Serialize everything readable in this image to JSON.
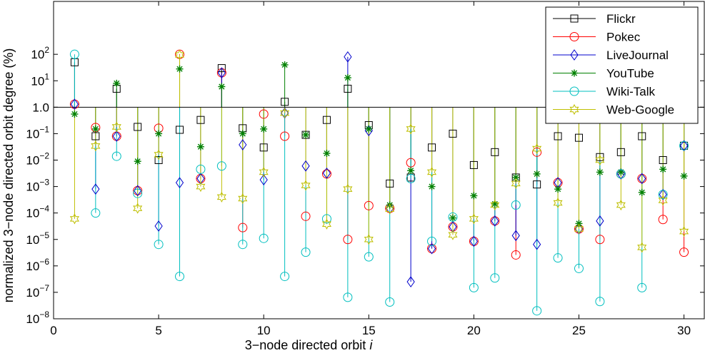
{
  "chart_data": {
    "type": "stem",
    "xlabel": "3−node directed orbit ",
    "xlabel_italic": "i",
    "ylabel": "normalized 3−node directed orbit degree (%)",
    "xlim": [
      0,
      31
    ],
    "ylim_exponent": [
      -8,
      4
    ],
    "y_scale": "log",
    "baseline": 1,
    "legend_position": "top-right",
    "x_ticks": [
      "0",
      "5",
      "10",
      "15",
      "20",
      "25",
      "30"
    ],
    "x_tick_values": [
      0,
      5,
      10,
      15,
      20,
      25,
      30
    ],
    "y_ticks": [
      {
        "exp": 2,
        "label": "10",
        "sup": "2"
      },
      {
        "exp": 1,
        "label": "10",
        "sup": "1"
      },
      {
        "exp": 0,
        "label": "1.0",
        "sup": ""
      },
      {
        "exp": -1,
        "label": "10",
        "sup": "−1"
      },
      {
        "exp": -2,
        "label": "10",
        "sup": "−2"
      },
      {
        "exp": -3,
        "label": "10",
        "sup": "−3"
      },
      {
        "exp": -4,
        "label": "10",
        "sup": "−4"
      },
      {
        "exp": -5,
        "label": "10",
        "sup": "−5"
      },
      {
        "exp": -6,
        "label": "10",
        "sup": "−6"
      },
      {
        "exp": -7,
        "label": "10",
        "sup": "−7"
      },
      {
        "exp": -8,
        "label": "10",
        "sup": "−8"
      }
    ],
    "x": [
      1,
      2,
      3,
      4,
      5,
      6,
      7,
      8,
      9,
      10,
      11,
      12,
      13,
      14,
      15,
      16,
      17,
      18,
      19,
      20,
      21,
      22,
      23,
      24,
      25,
      26,
      27,
      28,
      29,
      30
    ],
    "series": [
      {
        "name": "Flickr",
        "color": "#000000",
        "marker": "square",
        "values": [
          50,
          0.08,
          5,
          0.18,
          0.01,
          0.14,
          0.33,
          30,
          0.16,
          0.03,
          1.6,
          0.09,
          0.33,
          5,
          0.21,
          0.0013,
          0.0022,
          0.03,
          0.1,
          0.0065,
          0.02,
          0.0022,
          0.0012,
          0.08,
          0.07,
          0.013,
          0.02,
          0.08,
          0.01,
          0.035
        ]
      },
      {
        "name": "Pokec",
        "color": "#ff0000",
        "marker": "circle",
        "values": [
          1.3,
          0.17,
          0.08,
          0.0007,
          0.16,
          100,
          0.002,
          20,
          2.8e-05,
          0.55,
          0.08,
          7.5e-05,
          0.003,
          1e-05,
          0.00019,
          0.00015,
          0.008,
          4.5e-06,
          3e-05,
          8.5e-06,
          5e-05,
          2.6e-06,
          0.02,
          0.0014,
          2.5e-05,
          1e-05,
          0.003,
          0.002,
          5.7e-05,
          3.3e-06
        ]
      },
      {
        "name": "LiveJournal",
        "color": "#0000cc",
        "marker": "diamond",
        "values": [
          1.3,
          0.0008,
          0.08,
          0.0007,
          3.2e-05,
          0.0014,
          0.002,
          20,
          0.038,
          0.0018,
          0.6,
          0.006,
          0.0032,
          80,
          0.13,
          0.00015,
          2.5e-07,
          4.5e-06,
          3e-05,
          8.5e-06,
          5e-05,
          1.4e-05,
          6.5e-06,
          0.0014,
          2.5e-05,
          5e-05,
          0.003,
          0.002,
          0.0005,
          0.035
        ]
      },
      {
        "name": "YouTube",
        "color": "#008000",
        "marker": "asterisk",
        "values": [
          0.55,
          0.15,
          8,
          0.009,
          0.1,
          28,
          0.032,
          6,
          0.1,
          0.15,
          40,
          0.09,
          0.018,
          13,
          0.15,
          0.0002,
          0.004,
          0.001,
          6.5e-05,
          0.00045,
          0.00022,
          0.0022,
          0.003,
          0.0008,
          4e-05,
          0.0035,
          0.0035,
          0.0006,
          0.0045,
          0.0025
        ]
      },
      {
        "name": "Wiki-Talk",
        "color": "#00bfbf",
        "marker": "circle",
        "values": [
          100,
          0.0001,
          0.014,
          0.00055,
          6.5e-06,
          4e-07,
          0.0045,
          0.006,
          6.5e-06,
          1.1e-05,
          4e-07,
          3.3e-06,
          6e-05,
          6.5e-08,
          2.2e-06,
          4.3e-08,
          0.002,
          8.5e-06,
          7e-05,
          1.5e-07,
          3.5e-07,
          0.0002,
          2e-08,
          2e-06,
          8e-07,
          4.5e-08,
          0.003,
          1.5e-07,
          0.0005,
          0.035
        ]
      },
      {
        "name": "Web-Google",
        "color": "#bfbf00",
        "marker": "hexagram",
        "values": [
          6e-05,
          0.034,
          0.18,
          0.00015,
          0.016,
          95,
          0.001,
          0.0004,
          0.00035,
          0.0035,
          0.6,
          0.0011,
          3.8e-05,
          0.0008,
          1e-05,
          0.00014,
          0.15,
          0.0035,
          1.5e-05,
          6e-05,
          0.0002,
          0.0013,
          0.027,
          0.00024,
          2.5e-05,
          0.01,
          0.0002,
          5e-06,
          0.0003,
          2e-05
        ]
      }
    ]
  }
}
